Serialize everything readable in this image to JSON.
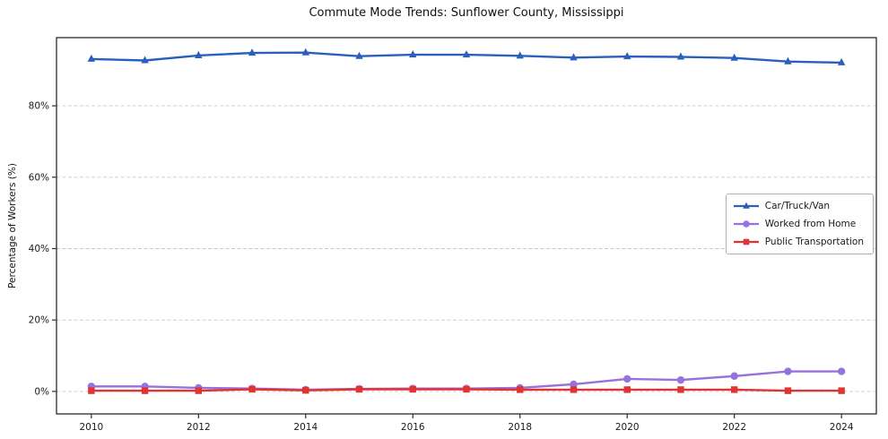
{
  "chart_data": {
    "type": "line",
    "title": "Commute Mode Trends: Sunflower County, Mississippi",
    "xlabel": "",
    "ylabel": "Percentage of Workers (%)",
    "x": [
      2010,
      2011,
      2012,
      2013,
      2014,
      2015,
      2016,
      2017,
      2018,
      2019,
      2020,
      2021,
      2022,
      2023,
      2024
    ],
    "series": [
      {
        "name": "Car/Truck/Van",
        "color": "#2a5fbe",
        "marker": "triangle",
        "values": [
          93.1,
          92.7,
          94.1,
          94.8,
          94.9,
          93.9,
          94.3,
          94.3,
          94.0,
          93.5,
          93.8,
          93.7,
          93.4,
          92.4,
          92.1
        ]
      },
      {
        "name": "Worked from Home",
        "color": "#9572dd",
        "marker": "circle",
        "values": [
          1.4,
          1.4,
          1.0,
          0.8,
          0.5,
          0.7,
          0.8,
          0.8,
          1.0,
          2.0,
          3.5,
          3.2,
          4.3,
          5.6,
          5.6
        ]
      },
      {
        "name": "Public Transportation",
        "color": "#e03333",
        "marker": "square",
        "values": [
          0.2,
          0.2,
          0.2,
          0.6,
          0.3,
          0.6,
          0.6,
          0.6,
          0.5,
          0.5,
          0.5,
          0.5,
          0.5,
          0.2,
          0.2
        ]
      }
    ],
    "xlim": [
      2009.35,
      2024.65
    ],
    "ylim": [
      -6.3,
      99.1
    ],
    "xticks": [
      2010,
      2012,
      2014,
      2016,
      2018,
      2020,
      2022,
      2024
    ],
    "xtick_labels": [
      "2010",
      "2012",
      "2014",
      "2016",
      "2018",
      "2020",
      "2022",
      "2024"
    ],
    "yticks": [
      0,
      20,
      40,
      60,
      80
    ],
    "ytick_labels": [
      "0%",
      "20%",
      "40%",
      "60%",
      "80%"
    ],
    "grid": "horizontal-dashed",
    "legend_position": "center-right",
    "legend_entries": [
      "Car/Truck/Van",
      "Worked from Home",
      "Public Transportation"
    ]
  }
}
